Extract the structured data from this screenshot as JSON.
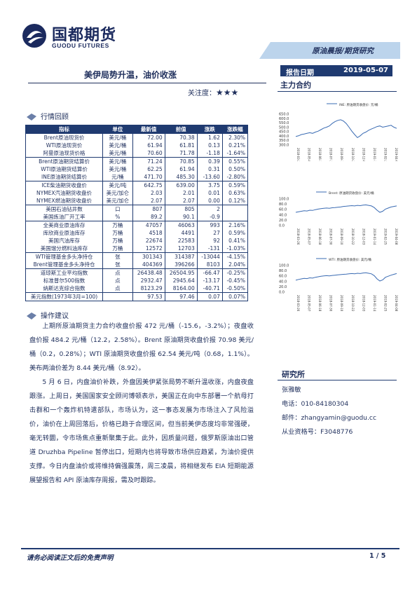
{
  "header": {
    "logo_cn": "国都期货",
    "logo_en": "GUODU FUTURES",
    "category": "原油晨报/期货研究"
  },
  "report": {
    "title": "美伊局势升温，油价收涨",
    "attention_label": "关注度：",
    "attention_stars": "★★★",
    "date_label": "报告日期",
    "date_value": "2019-05-07",
    "main_contract": "主力合约"
  },
  "sections": {
    "market_review": "行情回顾",
    "advice": "操作建议"
  },
  "table": {
    "headers": [
      "指标",
      "单位",
      "最新值",
      "前值",
      "涨跌",
      "涨跌幅"
    ],
    "rows": [
      [
        "Brent原油现货价",
        "美元/桶",
        "72.00",
        "70.38",
        "1.62",
        "2.30%"
      ],
      [
        "WTI原油现货价",
        "美元/桶",
        "61.94",
        "61.81",
        "0.13",
        "0.21%"
      ],
      [
        "阿曼原油现货价格",
        "美元/桶",
        "70.60",
        "71.78",
        "-1.18",
        "-1.64%"
      ],
      [
        "Brent原油期货结算价",
        "美元/桶",
        "71.24",
        "70.85",
        "0.39",
        "0.55%"
      ],
      [
        "WTI原油期货结算价",
        "美元/桶",
        "62.25",
        "61.94",
        "0.31",
        "0.50%"
      ],
      [
        "INE原油期货结算价",
        "元/桶",
        "471.70",
        "485.30",
        "-13.60",
        "-2.80%"
      ],
      [
        "ICE柴油期货收盘价",
        "美元/吨",
        "642.75",
        "639.00",
        "3.75",
        "0.59%"
      ],
      [
        "NYMEX汽油期货收盘价",
        "美元/加仑",
        "2.03",
        "2.01",
        "0.01",
        "0.63%"
      ],
      [
        "NYMEX燃油期货收盘价",
        "美元/加仑",
        "2.07",
        "2.07",
        "0.00",
        "0.12%"
      ],
      [
        "美国石油钻井数",
        "口",
        "807",
        "805",
        "2",
        ""
      ],
      [
        "美国炼油厂开工率",
        "%",
        "89.2",
        "90.1",
        "-0.9",
        ""
      ],
      [
        "全美商业原油库存",
        "万桶",
        "47057",
        "46063",
        "993",
        "2.16%"
      ],
      [
        "库欣商业原油库存",
        "万桶",
        "4518",
        "4491",
        "27",
        "0.59%"
      ],
      [
        "美国汽油库存",
        "万桶",
        "22674",
        "22583",
        "92",
        "0.41%"
      ],
      [
        "美国馏分燃料油库存",
        "万桶",
        "12572",
        "12703",
        "-131",
        "-1.03%"
      ],
      [
        "WTI管理基金多头净持仓",
        "张",
        "301343",
        "314387",
        "-13044",
        "-4.15%"
      ],
      [
        "Brent管理基金多头净持仓",
        "张",
        "404369",
        "396266",
        "8103",
        "2.04%"
      ],
      [
        "道琼斯工业平均指数",
        "点",
        "26438.48",
        "26504.95",
        "-66.47",
        "-0.25%"
      ],
      [
        "标准普尔500指数",
        "点",
        "2932.47",
        "2945.64",
        "-13.17",
        "-0.45%"
      ],
      [
        "纳斯达克综合指数",
        "点",
        "8123.29",
        "8164.00",
        "-40.71",
        "-0.50%"
      ],
      [
        "美元指数(1973年3月=100)",
        "",
        "97.53",
        "97.46",
        "0.07",
        "0.07%"
      ]
    ]
  },
  "advice": {
    "p1": "上期所原油期货主力合约收盘价报 472 元/桶（-15.6，-3.2%）；夜盘收盘价报 484.2 元/桶（12.2，2.58%）。Brent 原油期货收盘价报 70.98 美元/桶（0.2，0.28%）；WTI 原油期货收盘价报 62.54 美元/吨（0.68，1.1%）。美布两油价差为 8.44 美元/桶（8.92）。",
    "p2": "5 月 6 日，内盘油价补跌，外盘因美伊紧张局势不断升温收涨，内盘夜盘跟涨。上周日，美国国家安全顾问博顿表示，美国正在向中东部署一个航母打击群和一个轰炸机特遣部队，市场认为，这一事态发展为市场注入了风险溢价，油价在上周回落后，价格已趋于合理区间，但当前美伊态度均非常强硬，毫无转圜，令市场焦点重新聚集于此。此外，因质量问题，俄罗斯原油出口管道 Druzhba Pipeline 暂停出口，短期内也将导致市场供应趋紧，为油价提供支撑。今日内盘油价或将维持偏强震荡，周三凌晨，将相继发布 EIA 短期能源展望报告和 API 原油库存周报，需及时跟踪。"
  },
  "charts": [
    {
      "legend": "INE: 原油期货收盘价: 元/桶",
      "yticks": [
        "650.0",
        "600.0",
        "550.0",
        "500.0",
        "450.0",
        "400.0",
        "350.0",
        "300.0"
      ]
    },
    {
      "legend": "Brent: 原油期货收盘价: 美元/桶",
      "yticks": [
        "100.0",
        "80.0",
        "60.0",
        "40.0",
        "20.0",
        "0.0"
      ]
    },
    {
      "legend": "WTI: 原油期货收盘价: 美元/桶",
      "yticks": [
        "100.0",
        "80.0",
        "60.0",
        "40.0",
        "20.0",
        "0.0"
      ]
    }
  ],
  "researcher": {
    "title": "研究所",
    "name": "张雅敏",
    "phone": "电话：010-84180304",
    "email": "邮件：zhangyamin@guodu.cc",
    "license": "从业资格号：F3048776"
  },
  "footer": {
    "disclaimer": "请务必阅读正文后的免责声明",
    "page": "1 / 5"
  }
}
